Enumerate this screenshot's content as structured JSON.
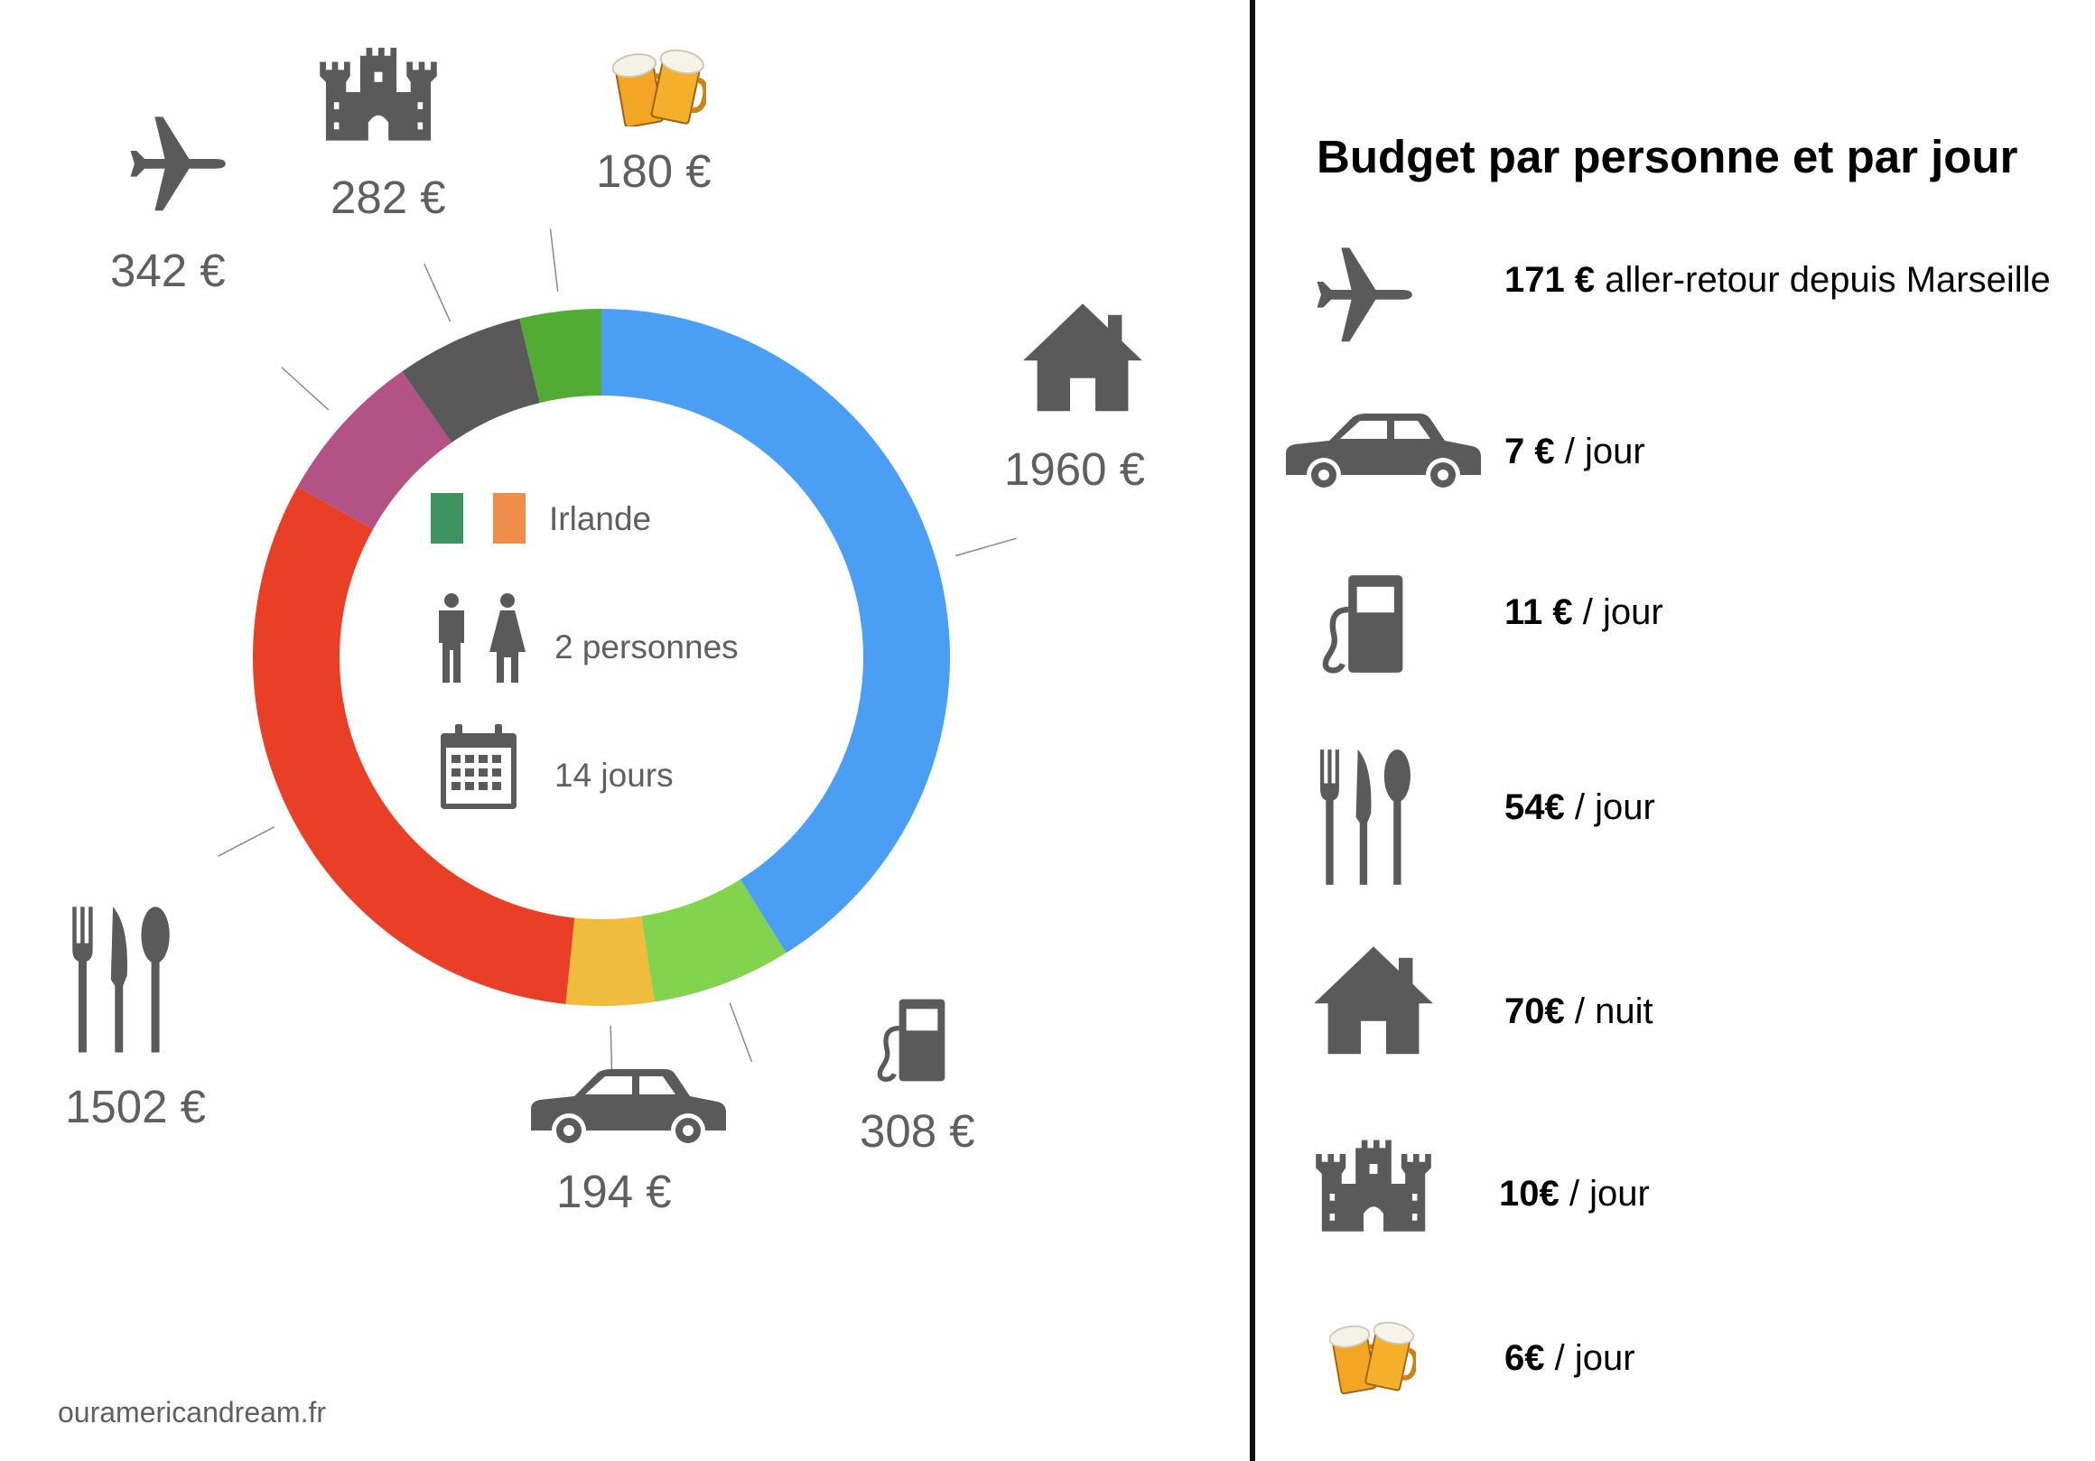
{
  "chart_data": {
    "type": "pie",
    "title": "",
    "categories": [
      "Logement",
      "Essence",
      "Voiture",
      "Repas",
      "Avion",
      "Visites",
      "Bières"
    ],
    "values": [
      1960,
      308,
      194,
      1502,
      342,
      282,
      180
    ],
    "value_labels": [
      "1960 €",
      "308 €",
      "194 €",
      "1502 €",
      "342 €",
      "282 €",
      "180 €"
    ],
    "colors": [
      "#4a9ff5",
      "#82d44f",
      "#efbc3d",
      "#e83f26",
      "#b35285",
      "#595959",
      "#52ac33"
    ],
    "icons": [
      "house-icon",
      "fuel-pump-icon",
      "car-icon",
      "cutlery-icon",
      "airplane-icon",
      "castle-icon",
      "beer-icon"
    ],
    "donut": true
  },
  "center": {
    "country": "Irlande",
    "flag_colors": [
      "#3e9460",
      "#f18d4a"
    ],
    "people": "2 personnes",
    "days": "14 jours"
  },
  "footer": {
    "site": "ouramericandream.fr"
  },
  "budget": {
    "title": "Budget par personne et par jour",
    "items": [
      {
        "icon": "airplane-icon",
        "amount": "171 €",
        "unit": " aller-retour depuis Marseille"
      },
      {
        "icon": "car-icon",
        "amount": "7 €",
        "unit": " / jour"
      },
      {
        "icon": "fuel-pump-icon",
        "amount": "11 €",
        "unit": " / jour"
      },
      {
        "icon": "cutlery-icon",
        "amount": "54€",
        "unit": " / jour"
      },
      {
        "icon": "house-icon",
        "amount": "70€",
        "unit": " / nuit"
      },
      {
        "icon": "castle-icon",
        "amount": "10€",
        "unit": " / jour"
      },
      {
        "icon": "beer-icon",
        "amount": "6€",
        "unit": " / jour"
      }
    ]
  },
  "theme": {
    "icon_color": "#5a5a5a",
    "divider_color": "#111111"
  }
}
